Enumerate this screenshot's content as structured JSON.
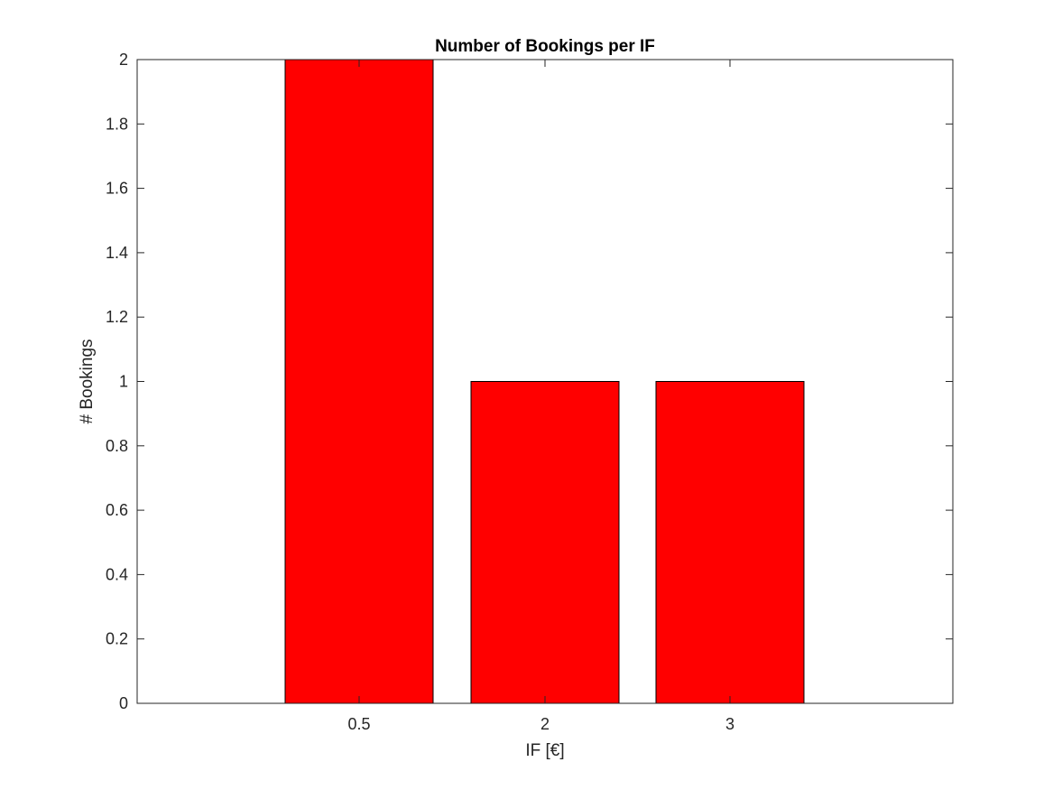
{
  "chart_data": {
    "type": "bar",
    "title": "Number of Bookings per IF",
    "xlabel": "IF [€]",
    "ylabel": "# Bookings",
    "categories": [
      "0.5",
      "2",
      "3"
    ],
    "values": [
      2,
      1,
      1
    ],
    "ylim": [
      0,
      2
    ],
    "yticks": [
      "0",
      "0.2",
      "0.4",
      "0.6",
      "0.8",
      "1",
      "1.2",
      "1.4",
      "1.6",
      "1.8",
      "2"
    ],
    "grid": false,
    "legend": "none",
    "colors": {
      "bar_fill": "#ff0000",
      "bar_edge": "#000000",
      "axis": "#262626"
    }
  }
}
